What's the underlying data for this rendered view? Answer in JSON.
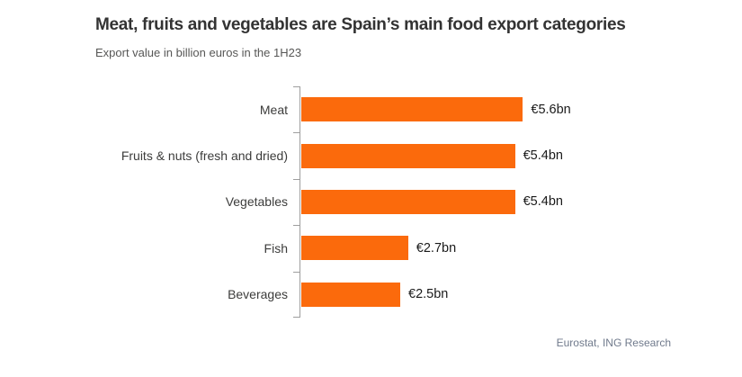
{
  "chart_data": {
    "type": "bar",
    "orientation": "horizontal",
    "title": "Meat, fruits and vegetables are Spain’s main food export categories",
    "subtitle": "Export value in billion euros in the 1H23",
    "source": "Eurostat, ING Research",
    "categories": [
      "Meat",
      "Fruits & nuts (fresh and dried)",
      "Vegetables",
      "Fish",
      "Beverages"
    ],
    "values": [
      5.6,
      5.4,
      5.4,
      2.7,
      2.5
    ],
    "value_labels": [
      "€5.6bn",
      "€5.4bn",
      "€5.4bn",
      "€2.7bn",
      "€2.5bn"
    ],
    "unit": "billion euros",
    "xlim": [
      0,
      6.2
    ],
    "grid": false,
    "legend": false,
    "colors": {
      "bar": "#FB6A0C",
      "axis": "#9E9E9E",
      "title": "#333333",
      "subtitle": "#575756",
      "category_label": "#3C3C3B",
      "value_label": "#1A1A1A",
      "source": "#707A8C",
      "background": "#FFFFFF"
    }
  }
}
